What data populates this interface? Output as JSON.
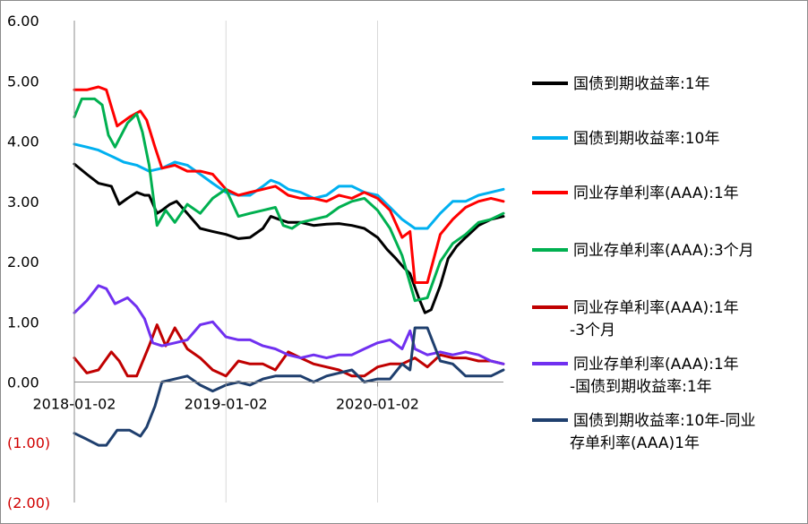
{
  "chart_data": {
    "type": "line",
    "title": "",
    "xlabel": "",
    "ylabel": "",
    "ylim": [
      -2,
      6
    ],
    "y_ticks": [
      6,
      5,
      4,
      3,
      2,
      1,
      0,
      -1,
      -2
    ],
    "y_tick_labels": [
      "6.00",
      "5.00",
      "4.00",
      "3.00",
      "2.00",
      "1.00",
      "0.00",
      "(1.00)",
      "(2.00)"
    ],
    "negative_tick_color": "#d00000",
    "x_range": [
      "2018-01-02",
      "2020-10-31"
    ],
    "x_tick_labels": [
      "2018-01-02",
      "2019-01-02",
      "2020-01-02"
    ],
    "grid": "vertical",
    "legend_position": "right",
    "series": [
      {
        "name": "国债到期收益率:1年",
        "color": "#000000",
        "points": [
          [
            "2018-01-02",
            3.62
          ],
          [
            "2018-02-01",
            3.45
          ],
          [
            "2018-03-01",
            3.3
          ],
          [
            "2018-04-01",
            3.25
          ],
          [
            "2018-04-20",
            2.95
          ],
          [
            "2018-05-10",
            3.05
          ],
          [
            "2018-06-01",
            3.15
          ],
          [
            "2018-06-20",
            3.1
          ],
          [
            "2018-07-01",
            3.1
          ],
          [
            "2018-07-20",
            2.8
          ],
          [
            "2018-08-01",
            2.85
          ],
          [
            "2018-08-20",
            2.95
          ],
          [
            "2018-09-05",
            3.0
          ],
          [
            "2018-10-01",
            2.8
          ],
          [
            "2018-11-01",
            2.55
          ],
          [
            "2018-12-01",
            2.5
          ],
          [
            "2019-01-02",
            2.45
          ],
          [
            "2019-02-01",
            2.38
          ],
          [
            "2019-03-01",
            2.4
          ],
          [
            "2019-04-01",
            2.55
          ],
          [
            "2019-04-20",
            2.75
          ],
          [
            "2019-05-10",
            2.7
          ],
          [
            "2019-06-01",
            2.65
          ],
          [
            "2019-07-01",
            2.65
          ],
          [
            "2019-08-01",
            2.6
          ],
          [
            "2019-09-01",
            2.62
          ],
          [
            "2019-10-01",
            2.63
          ],
          [
            "2019-11-01",
            2.6
          ],
          [
            "2019-12-01",
            2.55
          ],
          [
            "2020-01-02",
            2.4
          ],
          [
            "2020-01-25",
            2.2
          ],
          [
            "2020-02-15",
            2.05
          ],
          [
            "2020-03-05",
            1.9
          ],
          [
            "2020-03-20",
            1.8
          ],
          [
            "2020-04-10",
            1.4
          ],
          [
            "2020-04-25",
            1.15
          ],
          [
            "2020-05-10",
            1.2
          ],
          [
            "2020-06-01",
            1.6
          ],
          [
            "2020-06-20",
            2.05
          ],
          [
            "2020-07-10",
            2.25
          ],
          [
            "2020-08-01",
            2.4
          ],
          [
            "2020-09-01",
            2.6
          ],
          [
            "2020-10-01",
            2.7
          ],
          [
            "2020-10-31",
            2.75
          ]
        ]
      },
      {
        "name": "国债到期收益率:10年",
        "color": "#00b0f0",
        "points": [
          [
            "2018-01-02",
            3.95
          ],
          [
            "2018-02-01",
            3.9
          ],
          [
            "2018-03-01",
            3.85
          ],
          [
            "2018-04-01",
            3.75
          ],
          [
            "2018-05-01",
            3.65
          ],
          [
            "2018-06-01",
            3.6
          ],
          [
            "2018-07-01",
            3.5
          ],
          [
            "2018-08-01",
            3.55
          ],
          [
            "2018-09-01",
            3.65
          ],
          [
            "2018-10-01",
            3.6
          ],
          [
            "2018-11-01",
            3.45
          ],
          [
            "2018-12-01",
            3.3
          ],
          [
            "2019-01-02",
            3.15
          ],
          [
            "2019-02-01",
            3.1
          ],
          [
            "2019-03-01",
            3.1
          ],
          [
            "2019-04-01",
            3.25
          ],
          [
            "2019-04-20",
            3.35
          ],
          [
            "2019-05-10",
            3.3
          ],
          [
            "2019-06-01",
            3.2
          ],
          [
            "2019-07-01",
            3.15
          ],
          [
            "2019-08-01",
            3.05
          ],
          [
            "2019-09-01",
            3.1
          ],
          [
            "2019-10-01",
            3.25
          ],
          [
            "2019-11-01",
            3.25
          ],
          [
            "2019-12-01",
            3.15
          ],
          [
            "2020-01-02",
            3.1
          ],
          [
            "2020-02-01",
            2.9
          ],
          [
            "2020-03-01",
            2.7
          ],
          [
            "2020-04-01",
            2.55
          ],
          [
            "2020-05-01",
            2.55
          ],
          [
            "2020-06-01",
            2.8
          ],
          [
            "2020-07-01",
            3.0
          ],
          [
            "2020-08-01",
            3.0
          ],
          [
            "2020-09-01",
            3.1
          ],
          [
            "2020-10-01",
            3.15
          ],
          [
            "2020-10-31",
            3.2
          ]
        ]
      },
      {
        "name": "同业存单利率(AAA):1年",
        "color": "#ff0000",
        "points": [
          [
            "2018-01-02",
            4.85
          ],
          [
            "2018-02-01",
            4.85
          ],
          [
            "2018-03-01",
            4.9
          ],
          [
            "2018-03-20",
            4.85
          ],
          [
            "2018-04-15",
            4.25
          ],
          [
            "2018-05-15",
            4.4
          ],
          [
            "2018-06-10",
            4.5
          ],
          [
            "2018-06-25",
            4.35
          ],
          [
            "2018-07-15",
            3.9
          ],
          [
            "2018-08-01",
            3.55
          ],
          [
            "2018-09-01",
            3.6
          ],
          [
            "2018-10-01",
            3.5
          ],
          [
            "2018-11-01",
            3.5
          ],
          [
            "2018-12-01",
            3.45
          ],
          [
            "2019-01-02",
            3.2
          ],
          [
            "2019-02-01",
            3.1
          ],
          [
            "2019-03-01",
            3.15
          ],
          [
            "2019-04-01",
            3.2
          ],
          [
            "2019-05-01",
            3.25
          ],
          [
            "2019-06-01",
            3.1
          ],
          [
            "2019-07-01",
            3.05
          ],
          [
            "2019-08-01",
            3.05
          ],
          [
            "2019-09-01",
            3.0
          ],
          [
            "2019-10-01",
            3.1
          ],
          [
            "2019-11-01",
            3.05
          ],
          [
            "2019-12-01",
            3.15
          ],
          [
            "2020-01-02",
            3.05
          ],
          [
            "2020-02-01",
            2.85
          ],
          [
            "2020-03-01",
            2.4
          ],
          [
            "2020-03-20",
            2.5
          ],
          [
            "2020-04-01",
            1.65
          ],
          [
            "2020-05-01",
            1.65
          ],
          [
            "2020-06-01",
            2.45
          ],
          [
            "2020-07-01",
            2.7
          ],
          [
            "2020-08-01",
            2.9
          ],
          [
            "2020-09-01",
            3.0
          ],
          [
            "2020-10-01",
            3.05
          ],
          [
            "2020-10-31",
            3.0
          ]
        ]
      },
      {
        "name": "同业存单利率(AAA):3个月",
        "color": "#00b050",
        "points": [
          [
            "2018-01-02",
            4.4
          ],
          [
            "2018-01-20",
            4.7
          ],
          [
            "2018-02-20",
            4.7
          ],
          [
            "2018-03-10",
            4.6
          ],
          [
            "2018-03-25",
            4.1
          ],
          [
            "2018-04-10",
            3.9
          ],
          [
            "2018-05-10",
            4.3
          ],
          [
            "2018-06-01",
            4.45
          ],
          [
            "2018-06-15",
            4.15
          ],
          [
            "2018-07-01",
            3.6
          ],
          [
            "2018-07-20",
            2.6
          ],
          [
            "2018-08-10",
            2.85
          ],
          [
            "2018-09-01",
            2.65
          ],
          [
            "2018-10-01",
            2.95
          ],
          [
            "2018-11-01",
            2.8
          ],
          [
            "2018-12-01",
            3.05
          ],
          [
            "2019-01-02",
            3.2
          ],
          [
            "2019-02-01",
            2.75
          ],
          [
            "2019-03-01",
            2.8
          ],
          [
            "2019-04-01",
            2.85
          ],
          [
            "2019-05-01",
            2.9
          ],
          [
            "2019-05-20",
            2.6
          ],
          [
            "2019-06-10",
            2.55
          ],
          [
            "2019-07-01",
            2.65
          ],
          [
            "2019-08-01",
            2.7
          ],
          [
            "2019-09-01",
            2.75
          ],
          [
            "2019-10-01",
            2.9
          ],
          [
            "2019-11-01",
            3.0
          ],
          [
            "2019-12-01",
            3.05
          ],
          [
            "2020-01-02",
            2.85
          ],
          [
            "2020-02-01",
            2.55
          ],
          [
            "2020-03-01",
            2.1
          ],
          [
            "2020-04-01",
            1.35
          ],
          [
            "2020-05-01",
            1.4
          ],
          [
            "2020-06-01",
            2.0
          ],
          [
            "2020-07-01",
            2.3
          ],
          [
            "2020-08-01",
            2.45
          ],
          [
            "2020-09-01",
            2.65
          ],
          [
            "2020-10-01",
            2.7
          ],
          [
            "2020-10-31",
            2.8
          ]
        ]
      },
      {
        "name": "同业存单利率(AAA):1年-3个月",
        "color": "#c00000",
        "points": [
          [
            "2018-01-02",
            0.4
          ],
          [
            "2018-02-01",
            0.15
          ],
          [
            "2018-03-01",
            0.2
          ],
          [
            "2018-04-01",
            0.5
          ],
          [
            "2018-04-20",
            0.35
          ],
          [
            "2018-05-10",
            0.1
          ],
          [
            "2018-06-01",
            0.1
          ],
          [
            "2018-07-01",
            0.6
          ],
          [
            "2018-07-20",
            0.95
          ],
          [
            "2018-08-10",
            0.6
          ],
          [
            "2018-09-01",
            0.9
          ],
          [
            "2018-10-01",
            0.55
          ],
          [
            "2018-11-01",
            0.4
          ],
          [
            "2018-12-01",
            0.2
          ],
          [
            "2019-01-02",
            0.1
          ],
          [
            "2019-02-01",
            0.35
          ],
          [
            "2019-03-01",
            0.3
          ],
          [
            "2019-04-01",
            0.3
          ],
          [
            "2019-05-01",
            0.2
          ],
          [
            "2019-06-01",
            0.5
          ],
          [
            "2019-07-01",
            0.4
          ],
          [
            "2019-08-01",
            0.3
          ],
          [
            "2019-09-01",
            0.25
          ],
          [
            "2019-10-01",
            0.2
          ],
          [
            "2019-11-01",
            0.1
          ],
          [
            "2019-12-01",
            0.1
          ],
          [
            "2020-01-02",
            0.25
          ],
          [
            "2020-02-01",
            0.3
          ],
          [
            "2020-03-01",
            0.3
          ],
          [
            "2020-04-01",
            0.4
          ],
          [
            "2020-05-01",
            0.25
          ],
          [
            "2020-06-01",
            0.45
          ],
          [
            "2020-07-01",
            0.4
          ],
          [
            "2020-08-01",
            0.4
          ],
          [
            "2020-09-01",
            0.35
          ],
          [
            "2020-10-01",
            0.35
          ],
          [
            "2020-10-31",
            0.3
          ]
        ]
      },
      {
        "name": "同业存单利率(AAA):1年-国债到期收益率:1年",
        "color": "#7030f0",
        "points": [
          [
            "2018-01-02",
            1.15
          ],
          [
            "2018-02-01",
            1.35
          ],
          [
            "2018-03-01",
            1.6
          ],
          [
            "2018-03-20",
            1.55
          ],
          [
            "2018-04-10",
            1.3
          ],
          [
            "2018-05-10",
            1.4
          ],
          [
            "2018-06-01",
            1.25
          ],
          [
            "2018-06-20",
            1.05
          ],
          [
            "2018-07-10",
            0.65
          ],
          [
            "2018-08-01",
            0.6
          ],
          [
            "2018-09-01",
            0.65
          ],
          [
            "2018-10-01",
            0.7
          ],
          [
            "2018-11-01",
            0.95
          ],
          [
            "2018-12-01",
            1.0
          ],
          [
            "2019-01-02",
            0.75
          ],
          [
            "2019-02-01",
            0.7
          ],
          [
            "2019-03-01",
            0.7
          ],
          [
            "2019-04-01",
            0.6
          ],
          [
            "2019-05-01",
            0.55
          ],
          [
            "2019-06-01",
            0.45
          ],
          [
            "2019-07-01",
            0.4
          ],
          [
            "2019-08-01",
            0.45
          ],
          [
            "2019-09-01",
            0.4
          ],
          [
            "2019-10-01",
            0.45
          ],
          [
            "2019-11-01",
            0.45
          ],
          [
            "2019-12-01",
            0.55
          ],
          [
            "2020-01-02",
            0.65
          ],
          [
            "2020-02-01",
            0.7
          ],
          [
            "2020-03-01",
            0.55
          ],
          [
            "2020-03-20",
            0.85
          ],
          [
            "2020-04-01",
            0.55
          ],
          [
            "2020-05-01",
            0.45
          ],
          [
            "2020-06-01",
            0.5
          ],
          [
            "2020-07-01",
            0.45
          ],
          [
            "2020-08-01",
            0.5
          ],
          [
            "2020-09-01",
            0.45
          ],
          [
            "2020-10-01",
            0.35
          ],
          [
            "2020-10-31",
            0.3
          ]
        ]
      },
      {
        "name": "国债到期收益率:10年-同业存单利率(AAA)1年",
        "color": "#1f3f6e",
        "points": [
          [
            "2018-01-02",
            -0.85
          ],
          [
            "2018-02-01",
            -0.95
          ],
          [
            "2018-03-01",
            -1.05
          ],
          [
            "2018-03-20",
            -1.05
          ],
          [
            "2018-04-15",
            -0.8
          ],
          [
            "2018-05-15",
            -0.8
          ],
          [
            "2018-06-10",
            -0.9
          ],
          [
            "2018-06-25",
            -0.75
          ],
          [
            "2018-07-15",
            -0.4
          ],
          [
            "2018-08-01",
            0.0
          ],
          [
            "2018-09-01",
            0.05
          ],
          [
            "2018-10-01",
            0.1
          ],
          [
            "2018-11-01",
            -0.05
          ],
          [
            "2018-12-01",
            -0.15
          ],
          [
            "2019-01-02",
            -0.05
          ],
          [
            "2019-02-01",
            0.0
          ],
          [
            "2019-03-01",
            -0.05
          ],
          [
            "2019-04-01",
            0.05
          ],
          [
            "2019-05-01",
            0.1
          ],
          [
            "2019-06-01",
            0.1
          ],
          [
            "2019-07-01",
            0.1
          ],
          [
            "2019-08-01",
            0.0
          ],
          [
            "2019-09-01",
            0.1
          ],
          [
            "2019-10-01",
            0.15
          ],
          [
            "2019-11-01",
            0.2
          ],
          [
            "2019-12-01",
            0.0
          ],
          [
            "2020-01-02",
            0.05
          ],
          [
            "2020-02-01",
            0.05
          ],
          [
            "2020-03-01",
            0.3
          ],
          [
            "2020-03-20",
            0.2
          ],
          [
            "2020-04-01",
            0.9
          ],
          [
            "2020-05-01",
            0.9
          ],
          [
            "2020-06-01",
            0.35
          ],
          [
            "2020-07-01",
            0.3
          ],
          [
            "2020-08-01",
            0.1
          ],
          [
            "2020-09-01",
            0.1
          ],
          [
            "2020-10-01",
            0.1
          ],
          [
            "2020-10-31",
            0.2
          ]
        ]
      }
    ]
  }
}
